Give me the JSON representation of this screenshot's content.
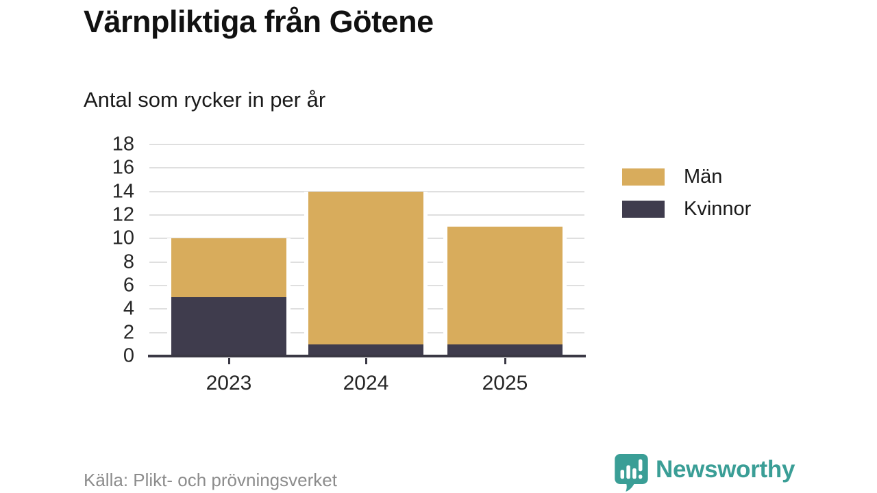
{
  "title": "Värnpliktiga från Götene",
  "subtitle": "Antal som rycker in per år",
  "source": "Källa: Plikt- och prövningsverket",
  "brand": {
    "name": "Newsworthy",
    "color": "#3A9E96"
  },
  "colors": {
    "men": "#D8AC5C",
    "women": "#3F3C4D",
    "grid": "#DFDFDF",
    "axis": "#3A3844",
    "tick_text": "#262626",
    "source_text": "#8C8C8C",
    "background": "#FFFFFF"
  },
  "chart_data": {
    "type": "bar",
    "stacked": true,
    "title": "Värnpliktiga från Götene",
    "subtitle": "Antal som rycker in per år",
    "categories": [
      "2023",
      "2024",
      "2025"
    ],
    "series": [
      {
        "name": "Män",
        "color": "#D8AC5C",
        "values": [
          5,
          13,
          10
        ],
        "stack_order": "top"
      },
      {
        "name": "Kvinnor",
        "color": "#3F3C4D",
        "values": [
          5,
          1,
          1
        ],
        "stack_order": "bottom"
      }
    ],
    "totals": [
      10,
      14,
      11
    ],
    "xlabel": "",
    "ylabel": "",
    "ylim": [
      0,
      18
    ],
    "yticks": [
      0,
      2,
      4,
      6,
      8,
      10,
      12,
      14,
      16,
      18
    ],
    "grid": true,
    "legend_position": "right"
  }
}
